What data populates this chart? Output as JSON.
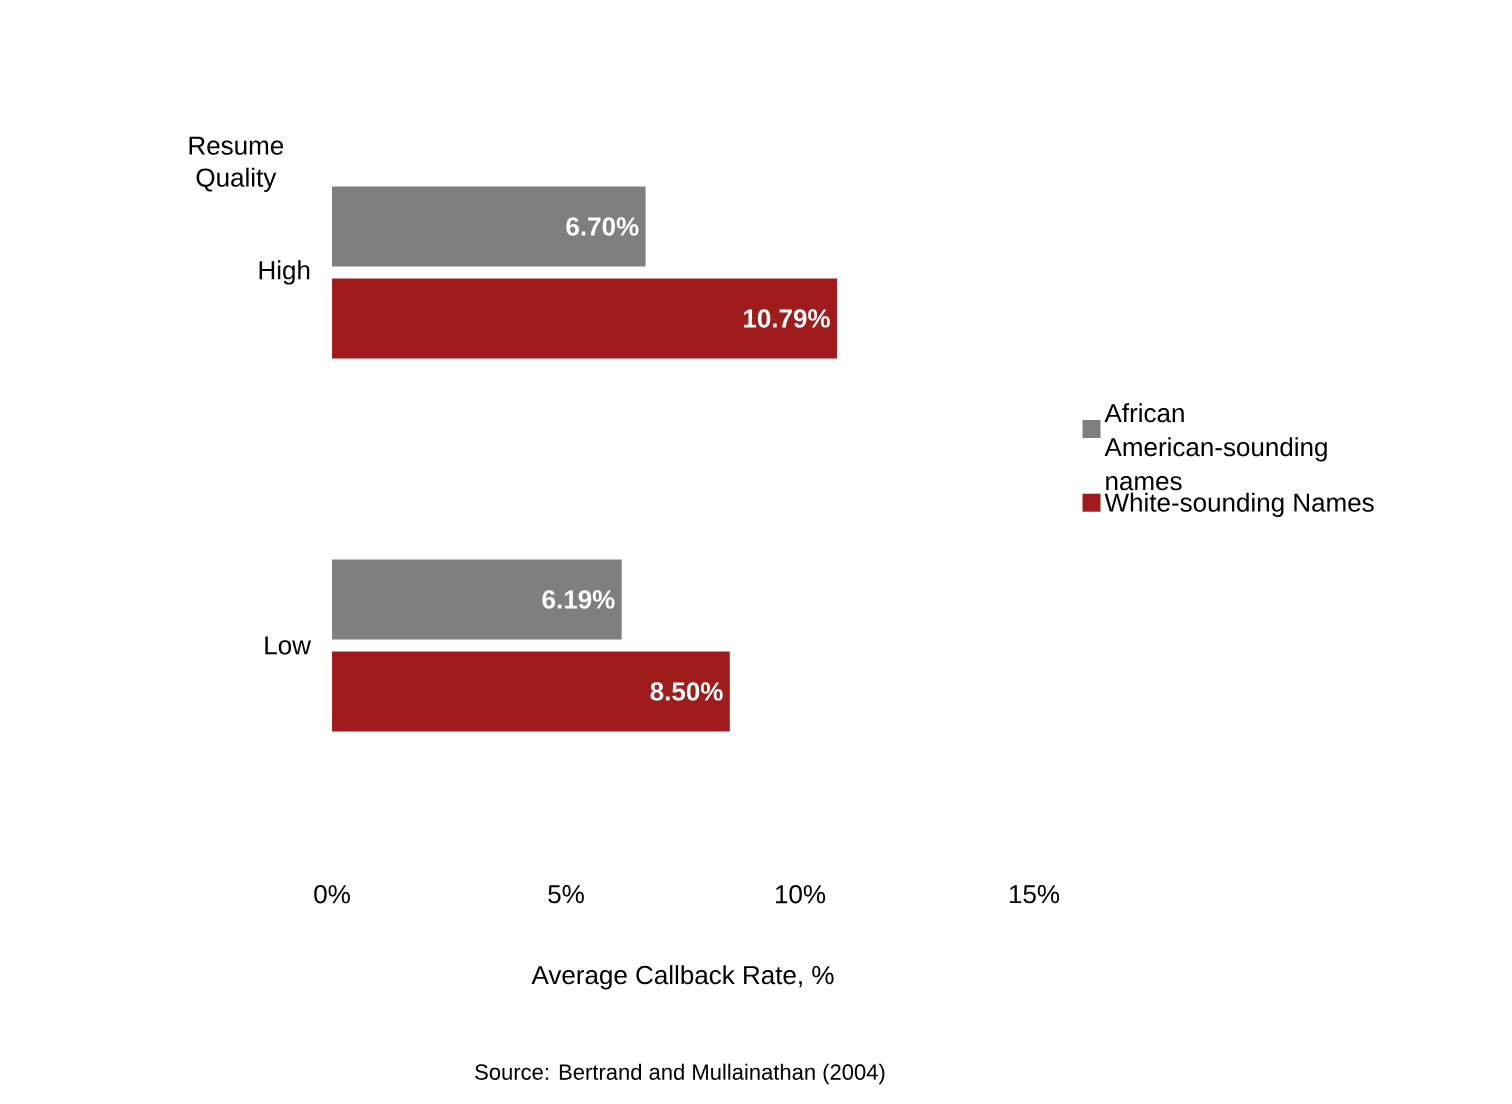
{
  "chart_data": {
    "type": "bar",
    "orientation": "horizontal",
    "ylabel": "Resume Quality",
    "xlabel": "Average Callback Rate, %",
    "annotations": [
      "Source: Bertrand and Mullainathan (2004)"
    ],
    "categories": [
      "High",
      "Low"
    ],
    "series": [
      {
        "name": "African American-sounding names",
        "color": "#7f7f7f",
        "values": [
          6.7,
          6.19
        ],
        "value_labels": [
          "6.70%",
          "6.19%"
        ]
      },
      {
        "name": "White-sounding Names",
        "color": "#a01c1c",
        "values": [
          10.79,
          8.5
        ],
        "value_labels": [
          "10.79%",
          "8.50%"
        ]
      }
    ],
    "xlim": [
      0,
      15
    ],
    "xticks": [
      {
        "value": 0,
        "label": "0%"
      },
      {
        "value": 5,
        "label": "5%"
      },
      {
        "value": 10,
        "label": "10%"
      },
      {
        "value": 15,
        "label": "15%"
      }
    ],
    "legend": "right"
  }
}
